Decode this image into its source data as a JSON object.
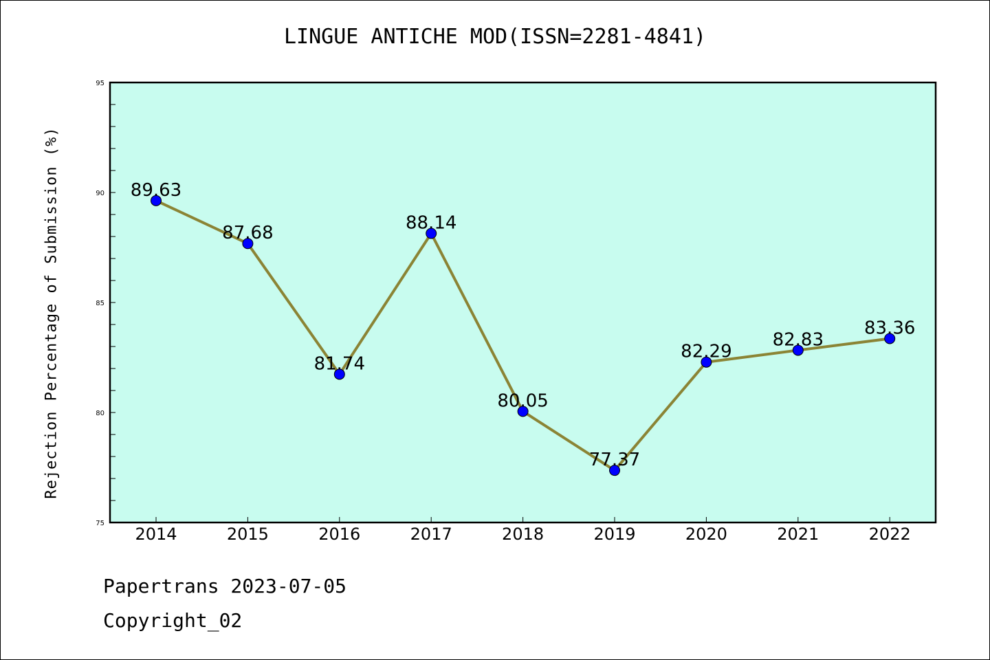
{
  "title": "LINGUE ANTICHE MOD(ISSN=2281-4841)",
  "footer": {
    "line1": "Papertrans 2023-07-05",
    "line2": "Copyright_02"
  },
  "colors": {
    "plot_background": "#c8fcef",
    "line": "#8b8435",
    "marker": "#0000ff",
    "axes": "#000000"
  },
  "chart_data": {
    "type": "line",
    "title": "LINGUE ANTICHE MOD(ISSN=2281-4841)",
    "xlabel": "",
    "ylabel": "Rejection Percentage of Submission (%)",
    "categories": [
      "2014",
      "2015",
      "2016",
      "2017",
      "2018",
      "2019",
      "2020",
      "2021",
      "2022"
    ],
    "values": [
      89.63,
      87.68,
      81.74,
      88.14,
      80.05,
      77.37,
      82.29,
      82.83,
      83.36
    ],
    "data_labels": [
      "89.63",
      "87.68",
      "81.74",
      "88.14",
      "80.05",
      "77.37",
      "82.29",
      "82.83",
      "83.36"
    ],
    "ylim": [
      75,
      95
    ],
    "yticks": [
      "75",
      "80",
      "85",
      "90",
      "95"
    ],
    "grid": false,
    "legend": "none"
  }
}
